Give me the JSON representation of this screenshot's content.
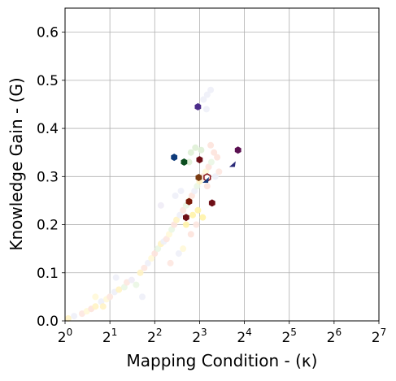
{
  "chart_data": {
    "type": "scatter",
    "xlabel": "Mapping Condition - (κ)",
    "ylabel": "Knowledge Gain - (G)",
    "x_scale": "log2",
    "xlim": [
      1,
      128
    ],
    "ylim": [
      0,
      0.65
    ],
    "grid": true,
    "x_ticks": [
      {
        "value": 1,
        "base": "2",
        "exp": "0"
      },
      {
        "value": 2,
        "base": "2",
        "exp": "1"
      },
      {
        "value": 4,
        "base": "2",
        "exp": "2"
      },
      {
        "value": 8,
        "base": "2",
        "exp": "3"
      },
      {
        "value": 16,
        "base": "2",
        "exp": "4"
      },
      {
        "value": 32,
        "base": "2",
        "exp": "5"
      },
      {
        "value": 64,
        "base": "2",
        "exp": "6"
      },
      {
        "value": 128,
        "base": "2",
        "exp": "7"
      }
    ],
    "y_ticks": [
      {
        "value": 0.0,
        "label": "0.0"
      },
      {
        "value": 0.1,
        "label": "0.1"
      },
      {
        "value": 0.2,
        "label": "0.2"
      },
      {
        "value": 0.3,
        "label": "0.3"
      },
      {
        "value": 0.4,
        "label": "0.4"
      },
      {
        "value": 0.5,
        "label": "0.5"
      },
      {
        "value": 0.6,
        "label": "0.6"
      }
    ],
    "background_points": [
      {
        "x": 1.05,
        "y": 0.005,
        "color": "#fff3c4"
      },
      {
        "x": 1.15,
        "y": 0.01,
        "color": "#eef0f8"
      },
      {
        "x": 1.3,
        "y": 0.015,
        "color": "#fde7e0"
      },
      {
        "x": 1.4,
        "y": 0.02,
        "color": "#fff8d8"
      },
      {
        "x": 1.5,
        "y": 0.025,
        "color": "#fde3dc"
      },
      {
        "x": 1.6,
        "y": 0.03,
        "color": "#fff3c4"
      },
      {
        "x": 1.75,
        "y": 0.04,
        "color": "#eef0f8"
      },
      {
        "x": 1.9,
        "y": 0.045,
        "color": "#fff8d8"
      },
      {
        "x": 2.0,
        "y": 0.05,
        "color": "#fde7e0"
      },
      {
        "x": 2.15,
        "y": 0.06,
        "color": "#eef0f8"
      },
      {
        "x": 2.3,
        "y": 0.065,
        "color": "#fff3c4"
      },
      {
        "x": 2.5,
        "y": 0.07,
        "color": "#eaf6e4"
      },
      {
        "x": 2.6,
        "y": 0.08,
        "color": "#fde7e0"
      },
      {
        "x": 2.8,
        "y": 0.085,
        "color": "#f0ecf6"
      },
      {
        "x": 3.0,
        "y": 0.075,
        "color": "#eaf6e4"
      },
      {
        "x": 3.2,
        "y": 0.1,
        "color": "#fff3c4"
      },
      {
        "x": 3.4,
        "y": 0.11,
        "color": "#fde7e0"
      },
      {
        "x": 3.6,
        "y": 0.12,
        "color": "#eef0f8"
      },
      {
        "x": 3.8,
        "y": 0.13,
        "color": "#fff8d8"
      },
      {
        "x": 4.0,
        "y": 0.14,
        "color": "#fde3dc"
      },
      {
        "x": 4.2,
        "y": 0.15,
        "color": "#eaf6e4"
      },
      {
        "x": 4.4,
        "y": 0.16,
        "color": "#fff3c4"
      },
      {
        "x": 4.6,
        "y": 0.165,
        "color": "#eef0f8"
      },
      {
        "x": 4.8,
        "y": 0.17,
        "color": "#fde7e0"
      },
      {
        "x": 5.0,
        "y": 0.18,
        "color": "#fff8d8"
      },
      {
        "x": 5.2,
        "y": 0.19,
        "color": "#eaf6e4"
      },
      {
        "x": 5.4,
        "y": 0.2,
        "color": "#fde3dc"
      },
      {
        "x": 5.6,
        "y": 0.21,
        "color": "#fff3c4"
      },
      {
        "x": 5.9,
        "y": 0.22,
        "color": "#eef0f8"
      },
      {
        "x": 6.2,
        "y": 0.23,
        "color": "#fde7e0"
      },
      {
        "x": 6.5,
        "y": 0.24,
        "color": "#eaf6e4"
      },
      {
        "x": 6.8,
        "y": 0.25,
        "color": "#fff8d8"
      },
      {
        "x": 7.1,
        "y": 0.26,
        "color": "#fde3dc"
      },
      {
        "x": 7.4,
        "y": 0.27,
        "color": "#eef0f8"
      },
      {
        "x": 7.7,
        "y": 0.28,
        "color": "#eaf6e4"
      },
      {
        "x": 8.0,
        "y": 0.29,
        "color": "#fff3c4"
      },
      {
        "x": 8.4,
        "y": 0.3,
        "color": "#fde7e0"
      },
      {
        "x": 8.8,
        "y": 0.31,
        "color": "#fff8d8"
      },
      {
        "x": 9.2,
        "y": 0.32,
        "color": "#fde3dc"
      },
      {
        "x": 9.6,
        "y": 0.33,
        "color": "#eaf6e4"
      },
      {
        "x": 7.0,
        "y": 0.35,
        "color": "#dff0d6"
      },
      {
        "x": 7.5,
        "y": 0.36,
        "color": "#dff0d6"
      },
      {
        "x": 8.2,
        "y": 0.355,
        "color": "#dff0d6"
      },
      {
        "x": 6.8,
        "y": 0.33,
        "color": "#dff0d6"
      },
      {
        "x": 9.5,
        "y": 0.365,
        "color": "#fde3dc"
      },
      {
        "x": 10.0,
        "y": 0.35,
        "color": "#fde3dc"
      },
      {
        "x": 10.5,
        "y": 0.34,
        "color": "#fde3dc"
      },
      {
        "x": 8.5,
        "y": 0.46,
        "color": "#eef0f8"
      },
      {
        "x": 9.0,
        "y": 0.47,
        "color": "#eef0f8"
      },
      {
        "x": 9.5,
        "y": 0.48,
        "color": "#eef0f8"
      },
      {
        "x": 8.9,
        "y": 0.44,
        "color": "#eef0f8"
      },
      {
        "x": 7.2,
        "y": 0.22,
        "color": "#fff3a8"
      },
      {
        "x": 7.8,
        "y": 0.23,
        "color": "#fff3a8"
      },
      {
        "x": 8.4,
        "y": 0.215,
        "color": "#fff3a8"
      },
      {
        "x": 6.5,
        "y": 0.2,
        "color": "#fff3a8"
      },
      {
        "x": 7.0,
        "y": 0.18,
        "color": "#fde3dc"
      },
      {
        "x": 6.2,
        "y": 0.15,
        "color": "#fff8d8"
      },
      {
        "x": 5.8,
        "y": 0.14,
        "color": "#eef0f8"
      },
      {
        "x": 6.0,
        "y": 0.27,
        "color": "#eef0f8"
      },
      {
        "x": 5.5,
        "y": 0.26,
        "color": "#eef0f8"
      },
      {
        "x": 4.4,
        "y": 0.24,
        "color": "#f0ecf6"
      },
      {
        "x": 9.0,
        "y": 0.28,
        "color": "#fde3dc"
      },
      {
        "x": 10.2,
        "y": 0.3,
        "color": "#eef0f8"
      },
      {
        "x": 10.8,
        "y": 0.31,
        "color": "#fde7e0"
      },
      {
        "x": 7.6,
        "y": 0.2,
        "color": "#fde7e0"
      },
      {
        "x": 3.3,
        "y": 0.05,
        "color": "#eef0f8"
      },
      {
        "x": 1.8,
        "y": 0.03,
        "color": "#fff3c4"
      },
      {
        "x": 1.6,
        "y": 0.05,
        "color": "#fff8d8"
      },
      {
        "x": 2.2,
        "y": 0.09,
        "color": "#eef0f8"
      },
      {
        "x": 5.1,
        "y": 0.12,
        "color": "#fde7e0"
      }
    ],
    "highlight_points": [
      {
        "x": 7.8,
        "y": 0.445,
        "color": "#4b2c8a",
        "marker": "hexagon"
      },
      {
        "x": 5.4,
        "y": 0.34,
        "color": "#0d3a7a",
        "marker": "hexagon"
      },
      {
        "x": 6.3,
        "y": 0.33,
        "color": "#0b4d1e",
        "marker": "hexagon"
      },
      {
        "x": 8.0,
        "y": 0.335,
        "color": "#6e0f17",
        "marker": "hexagon"
      },
      {
        "x": 14.5,
        "y": 0.355,
        "color": "#5a1050",
        "marker": "hexagon"
      },
      {
        "x": 13.3,
        "y": 0.325,
        "color": "#2a2a78",
        "marker": "triangle"
      },
      {
        "x": 7.9,
        "y": 0.298,
        "color": "#7a3a10",
        "marker": "hexagon"
      },
      {
        "x": 9.0,
        "y": 0.298,
        "color": "#8a1a20",
        "marker": "hexagon-open"
      },
      {
        "x": 8.8,
        "y": 0.292,
        "color": "#1a3a7a",
        "marker": "triangle"
      },
      {
        "x": 6.8,
        "y": 0.248,
        "color": "#7a1a0a",
        "marker": "hexagon"
      },
      {
        "x": 9.7,
        "y": 0.245,
        "color": "#6e0f17",
        "marker": "hexagon"
      },
      {
        "x": 6.5,
        "y": 0.215,
        "color": "#6e0f17",
        "marker": "hexagon"
      }
    ]
  }
}
